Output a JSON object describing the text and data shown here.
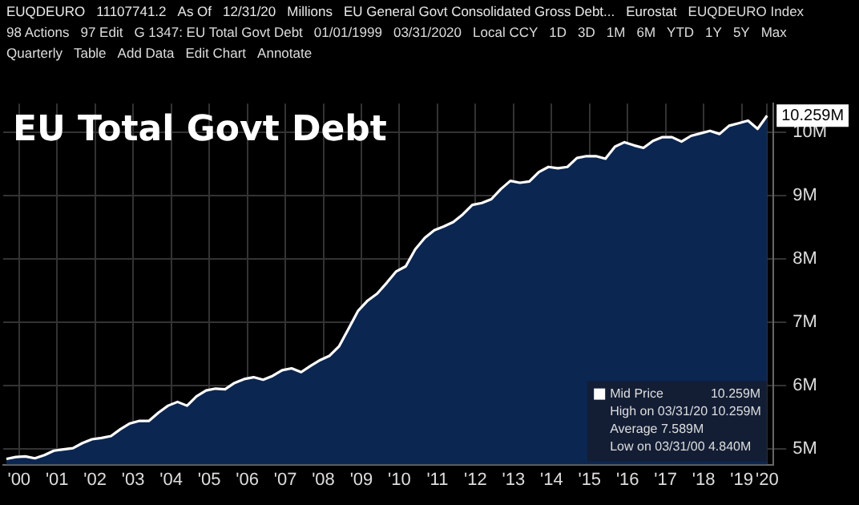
{
  "chart_data": {
    "type": "area",
    "title": "EU Total Govt Debt",
    "annotations": [
      "EUQDEURO",
      "11107741.2",
      "As Of",
      "12/31/20",
      "Millions",
      "EU General Govt Consolidated Gross Debt...",
      "Eurostat",
      "EUQDEURO Index",
      "98 Actions",
      "97 Edit",
      "G 1347: EU Total Govt Debt",
      "01/01/1999",
      "03/31/2020",
      "Local CCY",
      "1D",
      "3D",
      "1M",
      "6M",
      "YTD",
      "1Y",
      "5Y",
      "Max",
      "Quarterly",
      "Table",
      "Add Data",
      "Edit Chart",
      "Annotate",
      "High on 03/31/20 10.259M",
      "Average 7.589M",
      "Low on 03/31/00 4.840M"
    ],
    "x": [
      "2000-03",
      "2000-06",
      "2000-09",
      "2000-12",
      "2001-03",
      "2001-06",
      "2001-09",
      "2001-12",
      "2002-03",
      "2002-06",
      "2002-09",
      "2002-12",
      "2003-03",
      "2003-06",
      "2003-09",
      "2003-12",
      "2004-03",
      "2004-06",
      "2004-09",
      "2004-12",
      "2005-03",
      "2005-06",
      "2005-09",
      "2005-12",
      "2006-03",
      "2006-06",
      "2006-09",
      "2006-12",
      "2007-03",
      "2007-06",
      "2007-09",
      "2007-12",
      "2008-03",
      "2008-06",
      "2008-09",
      "2008-12",
      "2009-03",
      "2009-06",
      "2009-09",
      "2009-12",
      "2010-03",
      "2010-06",
      "2010-09",
      "2010-12",
      "2011-03",
      "2011-06",
      "2011-09",
      "2011-12",
      "2012-03",
      "2012-06",
      "2012-09",
      "2012-12",
      "2013-03",
      "2013-06",
      "2013-09",
      "2013-12",
      "2014-03",
      "2014-06",
      "2014-09",
      "2014-12",
      "2015-03",
      "2015-06",
      "2015-09",
      "2015-12",
      "2016-03",
      "2016-06",
      "2016-09",
      "2016-12",
      "2017-03",
      "2017-06",
      "2017-09",
      "2017-12",
      "2018-03",
      "2018-06",
      "2018-09",
      "2018-12",
      "2019-03",
      "2019-06",
      "2019-09",
      "2019-12",
      "2020-03"
    ],
    "series": [
      {
        "name": "Mid Price",
        "color": "#ffffff",
        "values": [
          4.84,
          4.87,
          4.88,
          4.85,
          4.9,
          4.97,
          4.99,
          5.01,
          5.09,
          5.15,
          5.17,
          5.2,
          5.31,
          5.4,
          5.44,
          5.44,
          5.57,
          5.68,
          5.74,
          5.68,
          5.83,
          5.92,
          5.95,
          5.94,
          6.04,
          6.1,
          6.13,
          6.09,
          6.15,
          6.24,
          6.27,
          6.21,
          6.31,
          6.4,
          6.47,
          6.62,
          6.9,
          7.18,
          7.34,
          7.45,
          7.62,
          7.8,
          7.88,
          8.15,
          8.33,
          8.45,
          8.51,
          8.58,
          8.7,
          8.85,
          8.88,
          8.94,
          9.1,
          9.23,
          9.2,
          9.22,
          9.37,
          9.45,
          9.43,
          9.45,
          9.59,
          9.62,
          9.62,
          9.58,
          9.77,
          9.84,
          9.79,
          9.75,
          9.86,
          9.92,
          9.92,
          9.85,
          9.94,
          9.98,
          10.02,
          9.97,
          10.1,
          10.14,
          10.18,
          10.05,
          10.259
        ],
        "value_labels": [
          null,
          null,
          null,
          null,
          null,
          null,
          null,
          null,
          null,
          null,
          null,
          null,
          null,
          null,
          null,
          null,
          null,
          null,
          null,
          null,
          null,
          null,
          null,
          null,
          null,
          null,
          null,
          null,
          null,
          null,
          null,
          null,
          null,
          null,
          null,
          null,
          null,
          null,
          null,
          null,
          null,
          null,
          null,
          null,
          null,
          null,
          null,
          null,
          null,
          null,
          null,
          null,
          null,
          null,
          null,
          null,
          null,
          null,
          null,
          null,
          null,
          null,
          null,
          null,
          null,
          null,
          null,
          null,
          null,
          null,
          null,
          null,
          null,
          null,
          null,
          null,
          null,
          null,
          null,
          null,
          "10.259M"
        ]
      }
    ],
    "xlim": [
      "2000-02",
      "2020-05"
    ],
    "xticks": [
      {
        "value": "2000-07",
        "label": "'00"
      },
      {
        "value": "2001-07",
        "label": "'01"
      },
      {
        "value": "2002-07",
        "label": "'02"
      },
      {
        "value": "2003-07",
        "label": "'03"
      },
      {
        "value": "2004-07",
        "label": "'04"
      },
      {
        "value": "2005-07",
        "label": "'05"
      },
      {
        "value": "2006-07",
        "label": "'06"
      },
      {
        "value": "2007-07",
        "label": "'07"
      },
      {
        "value": "2008-07",
        "label": "'08"
      },
      {
        "value": "2009-07",
        "label": "'09"
      },
      {
        "value": "2010-07",
        "label": "'10"
      },
      {
        "value": "2011-07",
        "label": "'11"
      },
      {
        "value": "2012-07",
        "label": "'12"
      },
      {
        "value": "2013-07",
        "label": "'13"
      },
      {
        "value": "2014-07",
        "label": "'14"
      },
      {
        "value": "2015-07",
        "label": "'15"
      },
      {
        "value": "2016-07",
        "label": "'16"
      },
      {
        "value": "2017-07",
        "label": "'17"
      },
      {
        "value": "2018-07",
        "label": "'18"
      },
      {
        "value": "2019-07",
        "label": "'19"
      },
      {
        "value": "2020-03",
        "label": "'20"
      }
    ],
    "ylim": [
      4.75,
      10.45
    ],
    "yticks": [
      {
        "value": 5,
        "label": "5M"
      },
      {
        "value": 6,
        "label": "6M"
      },
      {
        "value": 7,
        "label": "7M"
      },
      {
        "value": 8,
        "label": "8M"
      },
      {
        "value": 9,
        "label": "9M"
      },
      {
        "value": 10,
        "label": "10M"
      }
    ],
    "grid": true,
    "legend": "bottom right",
    "marker": "none",
    "line_style": "solid"
  }
}
